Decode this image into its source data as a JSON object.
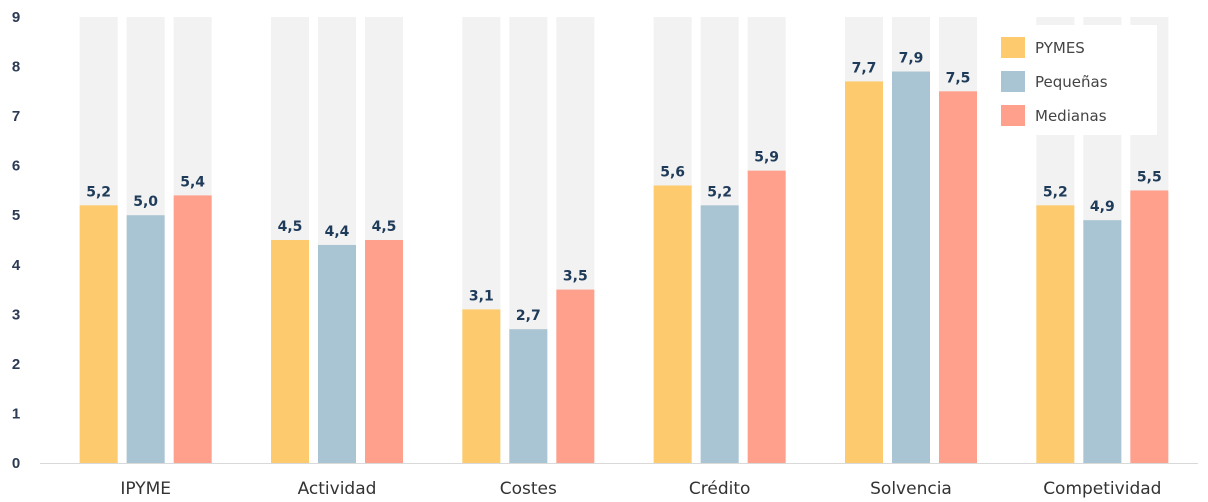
{
  "chart_data": {
    "type": "bar",
    "categories": [
      "IPYME",
      "Actividad",
      "Costes",
      "Crédito",
      "Solvencia",
      "Competividad"
    ],
    "series": [
      {
        "name": "PYMES",
        "color": "#FDCB6E",
        "values": [
          5.2,
          4.5,
          3.1,
          5.6,
          7.7,
          5.2
        ],
        "labels": [
          "5,2",
          "4,5",
          "3,1",
          "5,6",
          "7,7",
          "5,2"
        ]
      },
      {
        "name": "Pequeñas",
        "color": "#A9C4D2",
        "values": [
          5.0,
          4.4,
          2.7,
          5.2,
          7.9,
          4.9
        ],
        "labels": [
          "5,0",
          "4,4",
          "2,7",
          "5,2",
          "7,9",
          "4,9"
        ]
      },
      {
        "name": "Medianas",
        "color": "#FFA08D",
        "values": [
          5.4,
          4.5,
          3.5,
          5.9,
          7.5,
          5.5
        ],
        "labels": [
          "5,4",
          "4,5",
          "3,5",
          "5,9",
          "7,5",
          "5,5"
        ]
      }
    ],
    "yticks": [
      "0",
      "1",
      "2",
      "3",
      "4",
      "5",
      "6",
      "7",
      "8",
      "9"
    ],
    "ylim": [
      0,
      9
    ],
    "background_bar_value": 9,
    "background_bar_color": "#F2F2F2",
    "grid": false,
    "legend": "top-right"
  }
}
